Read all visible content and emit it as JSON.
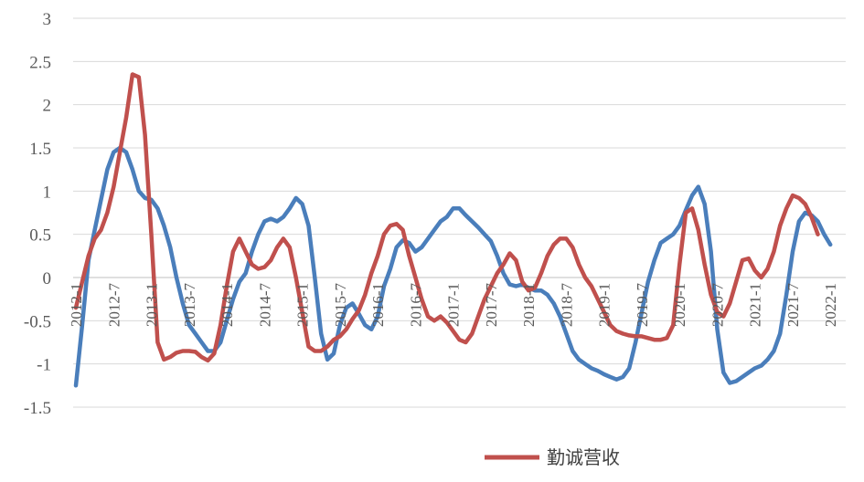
{
  "chart_data": {
    "type": "line",
    "title": "",
    "xlabel": "",
    "ylabel": "",
    "ylim": [
      -1.5,
      3
    ],
    "y_ticks": [
      "3",
      "2.5",
      "2",
      "1.5",
      "1",
      "0.5",
      "0",
      "-0.5",
      "-1",
      "-1.5"
    ],
    "grid": true,
    "legend_position": "bottom",
    "x_tick_labels": [
      "2012-1",
      "2012-7",
      "2013-1",
      "2013-7",
      "2014-1",
      "2014-7",
      "2015-1",
      "2015-7",
      "2016-1",
      "2016-7",
      "2017-1",
      "2017-7",
      "2018-1",
      "2018-7",
      "2019-1",
      "2019-7",
      "2020-1",
      "2020-7",
      "2021-1",
      "2021-7",
      "2022-1"
    ],
    "series": [
      {
        "name": "",
        "color": "#4a7ebb",
        "start": "2012-1",
        "values": [
          -1.25,
          -0.55,
          0.2,
          0.55,
          0.9,
          1.25,
          1.45,
          1.5,
          1.45,
          1.25,
          1.0,
          0.92,
          0.9,
          0.8,
          0.6,
          0.35,
          0.0,
          -0.3,
          -0.55,
          -0.65,
          -0.75,
          -0.85,
          -0.85,
          -0.75,
          -0.5,
          -0.25,
          -0.05,
          0.05,
          0.3,
          0.5,
          0.65,
          0.68,
          0.65,
          0.7,
          0.8,
          0.92,
          0.85,
          0.6,
          0.0,
          -0.65,
          -0.95,
          -0.88,
          -0.55,
          -0.35,
          -0.3,
          -0.42,
          -0.55,
          -0.6,
          -0.45,
          -0.1,
          0.1,
          0.35,
          0.43,
          0.4,
          0.3,
          0.35,
          0.45,
          0.55,
          0.65,
          0.7,
          0.8,
          0.8,
          0.72,
          0.65,
          0.58,
          0.5,
          0.42,
          0.25,
          0.05,
          -0.08,
          -0.1,
          -0.08,
          -0.12,
          -0.15,
          -0.15,
          -0.2,
          -0.3,
          -0.45,
          -0.65,
          -0.85,
          -0.95,
          -1.0,
          -1.05,
          -1.08,
          -1.12,
          -1.15,
          -1.18,
          -1.15,
          -1.05,
          -0.75,
          -0.4,
          -0.05,
          0.2,
          0.4,
          0.45,
          0.5,
          0.6,
          0.78,
          0.95,
          1.05,
          0.85,
          0.3,
          -0.6,
          -1.1,
          -1.22,
          -1.2,
          -1.15,
          -1.1,
          -1.05,
          -1.02,
          -0.95,
          -0.85,
          -0.65,
          -0.2,
          0.3,
          0.65,
          0.75,
          0.72,
          0.65,
          0.5,
          0.38
        ]
      },
      {
        "name": "勤诚营收",
        "color": "#c0504d",
        "start": "2012-1",
        "values": [
          -0.35,
          -0.05,
          0.25,
          0.45,
          0.55,
          0.75,
          1.05,
          1.45,
          1.85,
          2.35,
          2.32,
          1.65,
          0.5,
          -0.75,
          -0.95,
          -0.92,
          -0.87,
          -0.85,
          -0.85,
          -0.86,
          -0.92,
          -0.96,
          -0.88,
          -0.55,
          -0.1,
          0.3,
          0.45,
          0.3,
          0.15,
          0.1,
          0.12,
          0.2,
          0.35,
          0.45,
          0.35,
          0.0,
          -0.4,
          -0.8,
          -0.85,
          -0.85,
          -0.8,
          -0.72,
          -0.68,
          -0.6,
          -0.48,
          -0.38,
          -0.2,
          0.05,
          0.25,
          0.5,
          0.6,
          0.62,
          0.55,
          0.25,
          0.0,
          -0.25,
          -0.45,
          -0.5,
          -0.45,
          -0.52,
          -0.62,
          -0.72,
          -0.75,
          -0.65,
          -0.45,
          -0.25,
          -0.1,
          0.05,
          0.15,
          0.28,
          0.2,
          -0.05,
          -0.15,
          -0.12,
          0.05,
          0.25,
          0.38,
          0.45,
          0.45,
          0.35,
          0.15,
          0.0,
          -0.1,
          -0.25,
          -0.4,
          -0.55,
          -0.62,
          -0.65,
          -0.67,
          -0.68,
          -0.68,
          -0.7,
          -0.72,
          -0.72,
          -0.7,
          -0.55,
          0.15,
          0.75,
          0.8,
          0.55,
          0.15,
          -0.2,
          -0.4,
          -0.45,
          -0.3,
          -0.05,
          0.2,
          0.22,
          0.08,
          0.0,
          0.1,
          0.3,
          0.6,
          0.8,
          0.95,
          0.92,
          0.85,
          0.7,
          0.5
        ]
      }
    ]
  }
}
